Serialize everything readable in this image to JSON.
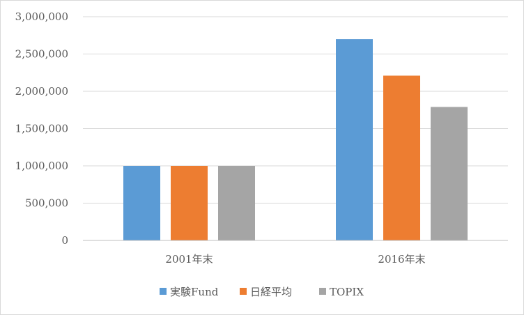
{
  "chart_data": {
    "type": "bar",
    "categories": [
      "2001年末",
      "2016年末"
    ],
    "series": [
      {
        "name": "実験Fund",
        "values": [
          1000000,
          2700000
        ],
        "color": "#5b9bd5"
      },
      {
        "name": "日経平均",
        "values": [
          1000000,
          2210000
        ],
        "color": "#ed7d31"
      },
      {
        "name": "TOPIX",
        "values": [
          1000000,
          1790000
        ],
        "color": "#a5a5a5"
      }
    ],
    "title": "",
    "xlabel": "",
    "ylabel": "",
    "ylim": [
      0,
      3000000
    ],
    "yticks": [
      {
        "value": 0,
        "label": "0"
      },
      {
        "value": 500000,
        "label": "500,000"
      },
      {
        "value": 1000000,
        "label": "1,000,000"
      },
      {
        "value": 1500000,
        "label": "1,500,000"
      },
      {
        "value": 2000000,
        "label": "2,000,000"
      },
      {
        "value": 2500000,
        "label": "2,500,000"
      },
      {
        "value": 3000000,
        "label": "3,000,000"
      }
    ],
    "grid": true,
    "legend_position": "bottom",
    "gridline_color": "#d9d9d9",
    "axis_line_color": "#bfbfbf"
  }
}
